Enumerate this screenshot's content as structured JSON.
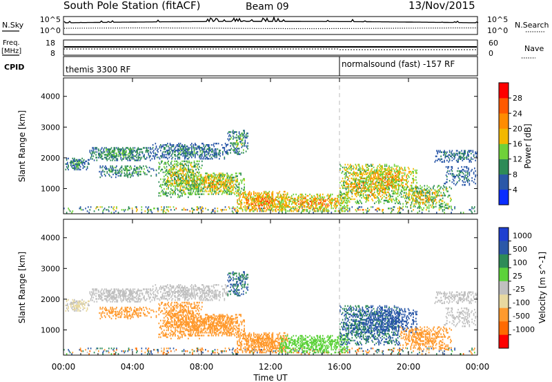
{
  "header": {
    "station": "South Pole Station (fitACF)",
    "beam": "Beam 09",
    "date": "13/Nov/2015"
  },
  "noise_panel": {
    "left_label": "N.Sky",
    "right_label": "N.Search",
    "left_ticks": [
      "10^5",
      "10^0"
    ],
    "right_ticks": [
      "10^5",
      "10^0"
    ]
  },
  "freq_panel": {
    "left_label_1": "Freq.",
    "left_label_2": "[MHz]",
    "right_label": "Nave",
    "left_ticks": [
      "18",
      "8"
    ],
    "right_ticks": [
      "60",
      "0"
    ]
  },
  "cpid_panel": {
    "label": "CPID",
    "segments": [
      {
        "start_hour": 0,
        "name": "themis 3300 RF"
      },
      {
        "start_hour": 16,
        "name": "normalsound (fast) -157 RF"
      }
    ]
  },
  "axes": {
    "x_label": "Time UT",
    "x_ticks": [
      "00:00",
      "04:00",
      "08:00",
      "12:00",
      "16:00",
      "20:00",
      "00:00"
    ],
    "x_hours": [
      0,
      4,
      8,
      12,
      16,
      20,
      24
    ],
    "y_label": "Slant Range [km]",
    "y_ticks": [
      "1000",
      "2000",
      "3000",
      "4000"
    ],
    "y_values": [
      1000,
      2000,
      3000,
      4000
    ],
    "y_range": [
      180,
      4600
    ]
  },
  "colors": {
    "power": [
      "#0a2dff",
      "#2b58a8",
      "#2e8b57",
      "#6fd13a",
      "#f2b800",
      "#ff8c00",
      "#ff5a00",
      "#ff0000"
    ],
    "velocity": [
      "#ff0000",
      "#ff6a00",
      "#ff9a2e",
      "#e8d9a0",
      "#c0c0c0",
      "#5cd23a",
      "#2e8b57",
      "#2b58a8",
      "#1f3fd0"
    ]
  },
  "chart_data": {
    "type": "heatmap",
    "power_panel": {
      "colorbar_label": "Power [dB]",
      "colorbar_ticks": [
        "4",
        "8",
        "12",
        "16",
        "20",
        "24",
        "28"
      ],
      "colorbar_values": [
        4,
        8,
        12,
        16,
        20,
        24,
        28
      ],
      "range": [
        0,
        30
      ]
    },
    "velocity_panel": {
      "colorbar_label": "Velocity [m s^-1]",
      "colorbar_ticks": [
        "1000",
        "500",
        "100",
        "25",
        "-25",
        "-100",
        "-500",
        "-1000"
      ]
    },
    "echo_regions": [
      {
        "t0": 0.0,
        "t1": 24.0,
        "r0": 200,
        "r1": 420,
        "density": 0.25,
        "power": [
          4,
          30
        ],
        "vel": [
          -1000,
          1000
        ]
      },
      {
        "t0": 0.0,
        "t1": 1.5,
        "r0": 1600,
        "r1": 2000,
        "density": 0.6,
        "power": [
          4,
          16
        ],
        "vel": [
          -100,
          25
        ]
      },
      {
        "t0": 1.5,
        "t1": 5.0,
        "r0": 1900,
        "r1": 2350,
        "density": 0.65,
        "power": [
          6,
          16
        ],
        "vel": [
          -25,
          25
        ]
      },
      {
        "t0": 5.0,
        "t1": 9.5,
        "r0": 1950,
        "r1": 2450,
        "density": 0.55,
        "power": [
          4,
          14
        ],
        "vel": [
          -25,
          25
        ]
      },
      {
        "t0": 2.0,
        "t1": 5.5,
        "r0": 1350,
        "r1": 1750,
        "density": 0.4,
        "power": [
          6,
          16
        ],
        "vel": [
          -500,
          -100
        ]
      },
      {
        "t0": 5.5,
        "t1": 8.0,
        "r0": 700,
        "r1": 1900,
        "density": 0.55,
        "power": [
          8,
          24
        ],
        "vel": [
          -500,
          -100
        ]
      },
      {
        "t0": 7.0,
        "t1": 10.5,
        "r0": 800,
        "r1": 1500,
        "density": 0.7,
        "power": [
          10,
          26
        ],
        "vel": [
          -500,
          -100
        ]
      },
      {
        "t0": 9.5,
        "t1": 10.7,
        "r0": 2100,
        "r1": 2900,
        "density": 0.5,
        "power": [
          4,
          20
        ],
        "vel": [
          100,
          1000
        ]
      },
      {
        "t0": 10.0,
        "t1": 13.0,
        "r0": 250,
        "r1": 900,
        "density": 0.75,
        "power": [
          14,
          30
        ],
        "vel": [
          -500,
          -100
        ]
      },
      {
        "t0": 12.5,
        "t1": 16.5,
        "r0": 250,
        "r1": 800,
        "density": 0.6,
        "power": [
          12,
          30
        ],
        "vel": [
          25,
          100
        ]
      },
      {
        "t0": 16.0,
        "t1": 19.5,
        "r0": 500,
        "r1": 1800,
        "density": 0.55,
        "power": [
          10,
          28
        ],
        "vel": [
          100,
          1000
        ]
      },
      {
        "t0": 17.5,
        "t1": 20.5,
        "r0": 900,
        "r1": 1700,
        "density": 0.5,
        "power": [
          12,
          28
        ],
        "vel": [
          500,
          1000
        ]
      },
      {
        "t0": 19.5,
        "t1": 22.5,
        "r0": 350,
        "r1": 1100,
        "density": 0.5,
        "power": [
          8,
          26
        ],
        "vel": [
          -500,
          -100
        ]
      },
      {
        "t0": 21.5,
        "t1": 24.0,
        "r0": 1850,
        "r1": 2250,
        "density": 0.55,
        "power": [
          4,
          12
        ],
        "vel": [
          -25,
          25
        ]
      },
      {
        "t0": 22.0,
        "t1": 24.0,
        "r0": 1100,
        "r1": 1700,
        "density": 0.3,
        "power": [
          4,
          12
        ],
        "vel": [
          -25,
          25
        ]
      }
    ]
  }
}
